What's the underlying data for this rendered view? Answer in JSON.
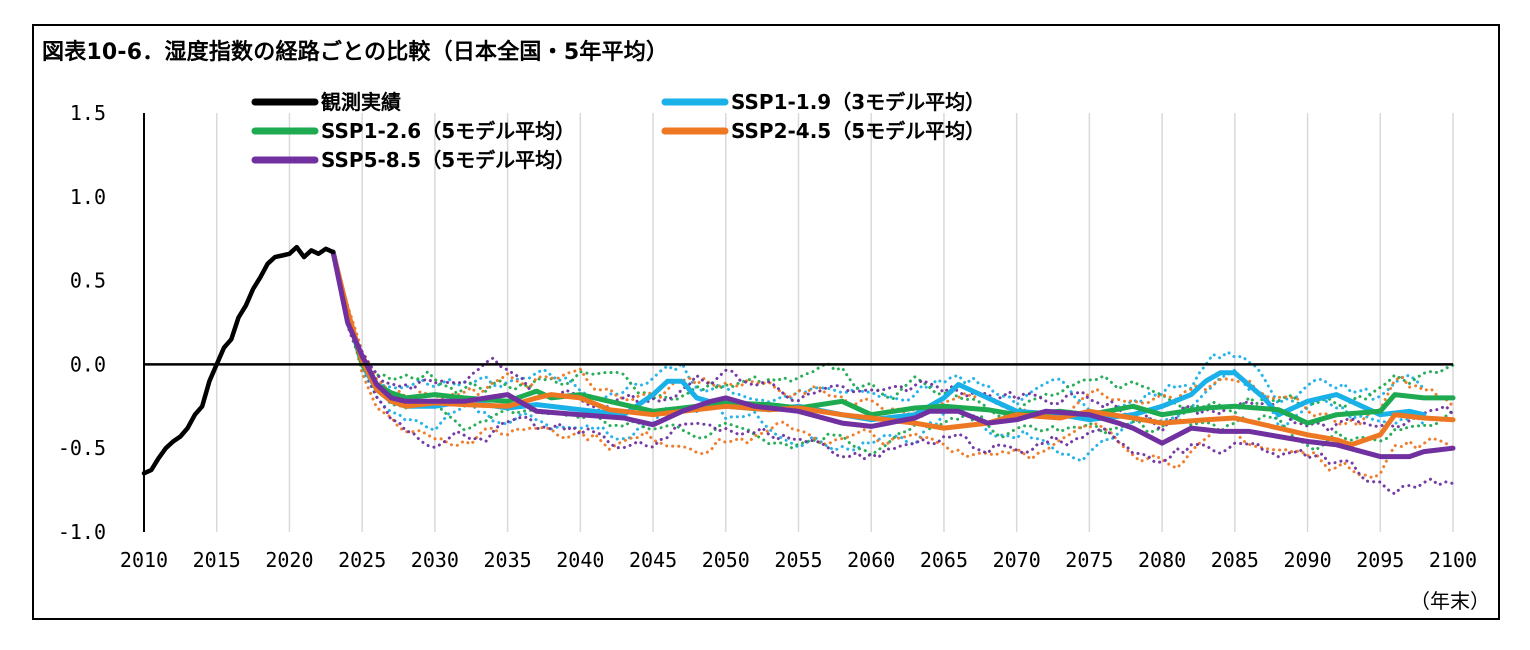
{
  "chart_data": {
    "type": "line",
    "title": "図表10-6．湿度指数の経路ごとの比較（日本全国・5年平均）",
    "x_unit": "（年末）",
    "xlim": [
      2010,
      2100
    ],
    "ylim": [
      -1.0,
      1.5
    ],
    "x_ticks": [
      "2010",
      "2015",
      "2020",
      "2025",
      "2030",
      "2035",
      "2040",
      "2045",
      "2050",
      "2055",
      "2060",
      "2065",
      "2070",
      "2075",
      "2080",
      "2085",
      "2090",
      "2095",
      "2100"
    ],
    "y_ticks": [
      "1.5",
      "1.0",
      "0.5",
      "0.0",
      "-0.5",
      "-1.0"
    ],
    "grid": "vertical",
    "legend_position": "top-left",
    "series": [
      {
        "name": "観測実績",
        "color": "#000000",
        "style": "solid",
        "x": [
          2010,
          2010.5,
          2011,
          2011.5,
          2012,
          2012.5,
          2013,
          2013.5,
          2014,
          2014.5,
          2015,
          2015.5,
          2016,
          2016.5,
          2017,
          2017.5,
          2018,
          2018.5,
          2019,
          2019.5,
          2020,
          2020.5,
          2021,
          2021.5,
          2022,
          2022.5,
          2023
        ],
        "values": [
          -0.65,
          -0.63,
          -0.56,
          -0.5,
          -0.46,
          -0.43,
          -0.38,
          -0.3,
          -0.25,
          -0.1,
          0.0,
          0.1,
          0.15,
          0.28,
          0.35,
          0.45,
          0.52,
          0.6,
          0.64,
          0.65,
          0.66,
          0.7,
          0.64,
          0.68,
          0.66,
          0.69,
          0.67
        ]
      },
      {
        "name": "SSP1-1.9（3モデル平均）",
        "color": "#1ab0e8",
        "style": "solid",
        "x": [
          2023,
          2024,
          2025,
          2026,
          2027,
          2028,
          2030,
          2032,
          2035,
          2037,
          2040,
          2043,
          2045,
          2046,
          2047,
          2048,
          2050,
          2053,
          2055,
          2058,
          2060,
          2063,
          2065,
          2066,
          2068,
          2070,
          2073,
          2075,
          2078,
          2080,
          2082,
          2083,
          2084,
          2085,
          2087,
          2088,
          2090,
          2092,
          2093,
          2095,
          2097,
          2098
        ],
        "values": [
          0.67,
          0.3,
          0.0,
          -0.15,
          -0.22,
          -0.25,
          -0.25,
          -0.22,
          -0.26,
          -0.24,
          -0.27,
          -0.3,
          -0.18,
          -0.1,
          -0.1,
          -0.2,
          -0.25,
          -0.27,
          -0.25,
          -0.3,
          -0.33,
          -0.3,
          -0.2,
          -0.12,
          -0.2,
          -0.28,
          -0.3,
          -0.33,
          -0.3,
          -0.25,
          -0.18,
          -0.1,
          -0.05,
          -0.05,
          -0.2,
          -0.3,
          -0.22,
          -0.18,
          -0.22,
          -0.3,
          -0.28,
          -0.3
        ]
      },
      {
        "name": "SSP1-2.6（5モデル平均）",
        "color": "#1daa50",
        "style": "solid",
        "x": [
          2023,
          2024,
          2025,
          2026,
          2027,
          2028,
          2030,
          2032,
          2035,
          2037,
          2038,
          2040,
          2042,
          2045,
          2048,
          2050,
          2053,
          2055,
          2058,
          2060,
          2063,
          2065,
          2068,
          2070,
          2073,
          2075,
          2078,
          2080,
          2083,
          2085,
          2088,
          2090,
          2092,
          2095,
          2096,
          2098,
          2100
        ],
        "values": [
          0.67,
          0.3,
          0.0,
          -0.12,
          -0.17,
          -0.2,
          -0.18,
          -0.2,
          -0.22,
          -0.16,
          -0.2,
          -0.18,
          -0.22,
          -0.28,
          -0.25,
          -0.23,
          -0.24,
          -0.26,
          -0.22,
          -0.3,
          -0.26,
          -0.25,
          -0.27,
          -0.3,
          -0.28,
          -0.3,
          -0.25,
          -0.3,
          -0.26,
          -0.25,
          -0.27,
          -0.35,
          -0.3,
          -0.28,
          -0.18,
          -0.2,
          -0.2
        ]
      },
      {
        "name": "SSP2-4.5（5モデル平均）",
        "color": "#ee7722",
        "style": "solid",
        "x": [
          2023,
          2024,
          2025,
          2026,
          2027,
          2028,
          2030,
          2032,
          2035,
          2037,
          2038,
          2040,
          2042,
          2045,
          2048,
          2050,
          2053,
          2055,
          2058,
          2060,
          2063,
          2065,
          2068,
          2070,
          2073,
          2075,
          2078,
          2080,
          2083,
          2085,
          2088,
          2090,
          2092,
          2093,
          2095,
          2096,
          2098,
          2100
        ],
        "values": [
          0.67,
          0.32,
          0.02,
          -0.15,
          -0.22,
          -0.25,
          -0.23,
          -0.24,
          -0.25,
          -0.2,
          -0.18,
          -0.2,
          -0.27,
          -0.3,
          -0.27,
          -0.25,
          -0.27,
          -0.26,
          -0.3,
          -0.32,
          -0.35,
          -0.38,
          -0.35,
          -0.3,
          -0.32,
          -0.28,
          -0.32,
          -0.35,
          -0.33,
          -0.32,
          -0.38,
          -0.42,
          -0.45,
          -0.48,
          -0.42,
          -0.3,
          -0.32,
          -0.33
        ]
      },
      {
        "name": "SSP5-8.5（5モデル平均）",
        "color": "#7030a0",
        "style": "solid",
        "x": [
          2023,
          2024,
          2025,
          2026,
          2027,
          2028,
          2030,
          2032,
          2035,
          2037,
          2040,
          2043,
          2045,
          2047,
          2049,
          2050,
          2052,
          2055,
          2058,
          2060,
          2063,
          2064,
          2066,
          2068,
          2070,
          2072,
          2075,
          2077,
          2078,
          2080,
          2082,
          2084,
          2086,
          2088,
          2090,
          2092,
          2095,
          2097,
          2098,
          2100
        ],
        "values": [
          0.67,
          0.25,
          0.05,
          -0.12,
          -0.2,
          -0.22,
          -0.22,
          -0.22,
          -0.18,
          -0.28,
          -0.3,
          -0.32,
          -0.36,
          -0.28,
          -0.22,
          -0.2,
          -0.25,
          -0.28,
          -0.35,
          -0.37,
          -0.32,
          -0.28,
          -0.28,
          -0.35,
          -0.33,
          -0.28,
          -0.3,
          -0.35,
          -0.38,
          -0.47,
          -0.38,
          -0.4,
          -0.4,
          -0.43,
          -0.46,
          -0.48,
          -0.55,
          -0.55,
          -0.52,
          -0.5
        ]
      }
    ]
  }
}
